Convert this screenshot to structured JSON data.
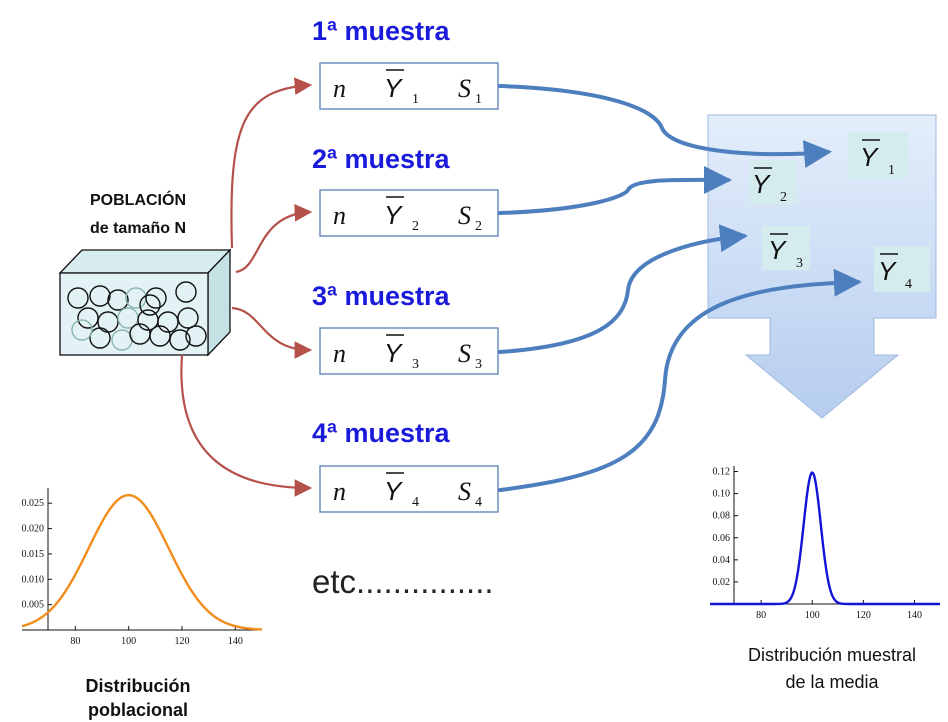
{
  "population": {
    "title_line1": "POBLACIÓN",
    "title_line2": "de tamaño N"
  },
  "samples": [
    {
      "heading": "1ª  muestra",
      "n": "n",
      "ybar": "Y",
      "ybar_sub": "1",
      "s": "S",
      "s_sub": "1"
    },
    {
      "heading": "2ª  muestra",
      "n": "n",
      "ybar": "Y",
      "ybar_sub": "2",
      "s": "S",
      "s_sub": "2"
    },
    {
      "heading": "3ª  muestra",
      "n": "n",
      "ybar": "Y",
      "ybar_sub": "3",
      "s": "S",
      "s_sub": "3"
    },
    {
      "heading": "4ª  muestra",
      "n": "n",
      "ybar": "Y",
      "ybar_sub": "4",
      "s": "S",
      "s_sub": "4"
    }
  ],
  "means_box": [
    {
      "label": "Y",
      "sub": "1"
    },
    {
      "label": "Y",
      "sub": "2"
    },
    {
      "label": "Y",
      "sub": "3"
    },
    {
      "label": "Y",
      "sub": "4"
    }
  ],
  "etc_text": "etc...............",
  "pop_caption_line1": "Distribución",
  "pop_caption_line2": "poblacional",
  "sampling_caption_line1": "Distribución muestral",
  "sampling_caption_line2": "de la media",
  "colors": {
    "heading": "#1a1adb",
    "red_arrow": "#b5504a",
    "blue_arrow": "#4d7fbf",
    "pop_curve": "#f28c1b",
    "sampling_curve": "#1414d6",
    "means_panel": "#c9dcf5"
  },
  "chart_data": [
    {
      "type": "line",
      "name": "population",
      "x_ticks": [
        80,
        100,
        120,
        140
      ],
      "y_ticks": [
        "0.005",
        "0.010",
        "0.015",
        "0.020",
        "0.025"
      ],
      "xlim": [
        60,
        150
      ],
      "ylim": [
        0,
        0.028
      ],
      "distribution": {
        "mean": 100,
        "sd": 15
      },
      "title": "",
      "xlabel": "",
      "ylabel": ""
    },
    {
      "type": "line",
      "name": "sampling",
      "x_ticks": [
        80,
        100,
        120,
        140
      ],
      "y_ticks": [
        "0.02",
        "0.04",
        "0.06",
        "0.08",
        "0.10",
        "0.12"
      ],
      "xlim": [
        60,
        150
      ],
      "ylim": [
        0,
        0.125
      ],
      "distribution": {
        "mean": 100,
        "sd": 3.35
      },
      "title": "",
      "xlabel": "",
      "ylabel": ""
    }
  ]
}
